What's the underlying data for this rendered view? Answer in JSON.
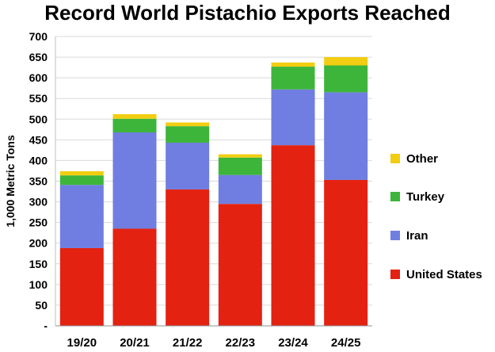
{
  "chart_data": {
    "type": "bar",
    "stacked": true,
    "title": "Record World Pistachio Exports Reached",
    "ylabel": "1,000 Metric Tons",
    "xlabel": "",
    "categories": [
      "19/20",
      "20/21",
      "21/22",
      "22/23",
      "23/24",
      "24/25"
    ],
    "ylim": [
      0,
      700
    ],
    "yticks": [
      0,
      50,
      100,
      150,
      200,
      250,
      300,
      350,
      400,
      450,
      500,
      550,
      600,
      650,
      700
    ],
    "ytick_labels": [
      "-",
      "50",
      "100",
      "150",
      "200",
      "250",
      "300",
      "350",
      "400",
      "450",
      "500",
      "550",
      "600",
      "650",
      "700"
    ],
    "grid": true,
    "legend_position": "right",
    "series": [
      {
        "name": "United States",
        "color": "#e32212",
        "values": [
          188,
          235,
          330,
          295,
          437,
          353
        ]
      },
      {
        "name": "Iran",
        "color": "#6f7ee0",
        "values": [
          153,
          233,
          113,
          70,
          135,
          212
        ]
      },
      {
        "name": "Turkey",
        "color": "#3db53a",
        "values": [
          23,
          33,
          40,
          42,
          55,
          65
        ]
      },
      {
        "name": "Other",
        "color": "#f2cd11",
        "values": [
          10,
          11,
          9,
          8,
          10,
          20
        ]
      }
    ],
    "legend_order": [
      "Other",
      "Turkey",
      "Iran",
      "United States"
    ]
  }
}
